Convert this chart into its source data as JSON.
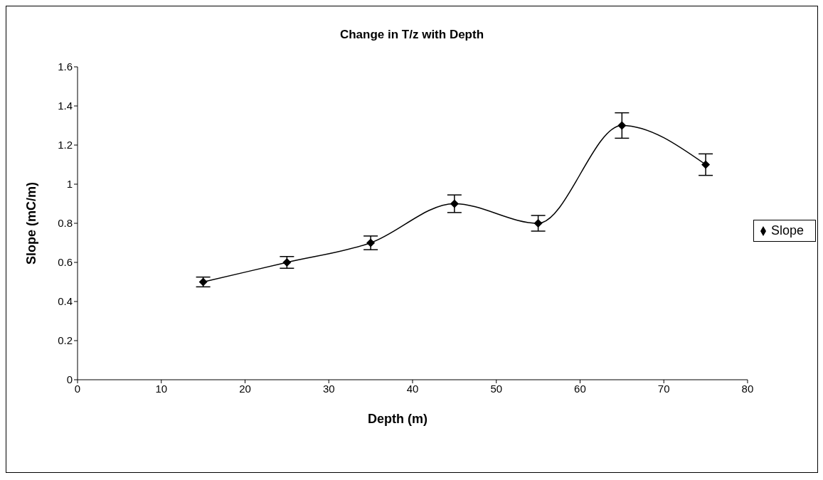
{
  "chart_data": {
    "type": "line",
    "title": "Change in T/z with Depth",
    "xlabel": "Depth (m)",
    "ylabel": "Slope (mC/m)",
    "x": [
      15,
      25,
      35,
      45,
      55,
      65,
      75
    ],
    "series": [
      {
        "name": "Slope",
        "color": "#000000",
        "values": [
          0.5,
          0.6,
          0.7,
          0.9,
          0.8,
          1.3,
          1.1
        ],
        "errors": [
          0.025,
          0.03,
          0.035,
          0.045,
          0.04,
          0.065,
          0.055
        ]
      }
    ],
    "xlim": [
      0,
      80
    ],
    "xticks": [
      0,
      10,
      20,
      30,
      40,
      50,
      60,
      70,
      80
    ],
    "ylim": [
      0,
      1.6
    ],
    "yticks": [
      0,
      0.2,
      0.4,
      0.6,
      0.8,
      1,
      1.2,
      1.4,
      1.6
    ],
    "grid": false,
    "legend": "right",
    "marker": "diamond",
    "line_style": "solid"
  }
}
